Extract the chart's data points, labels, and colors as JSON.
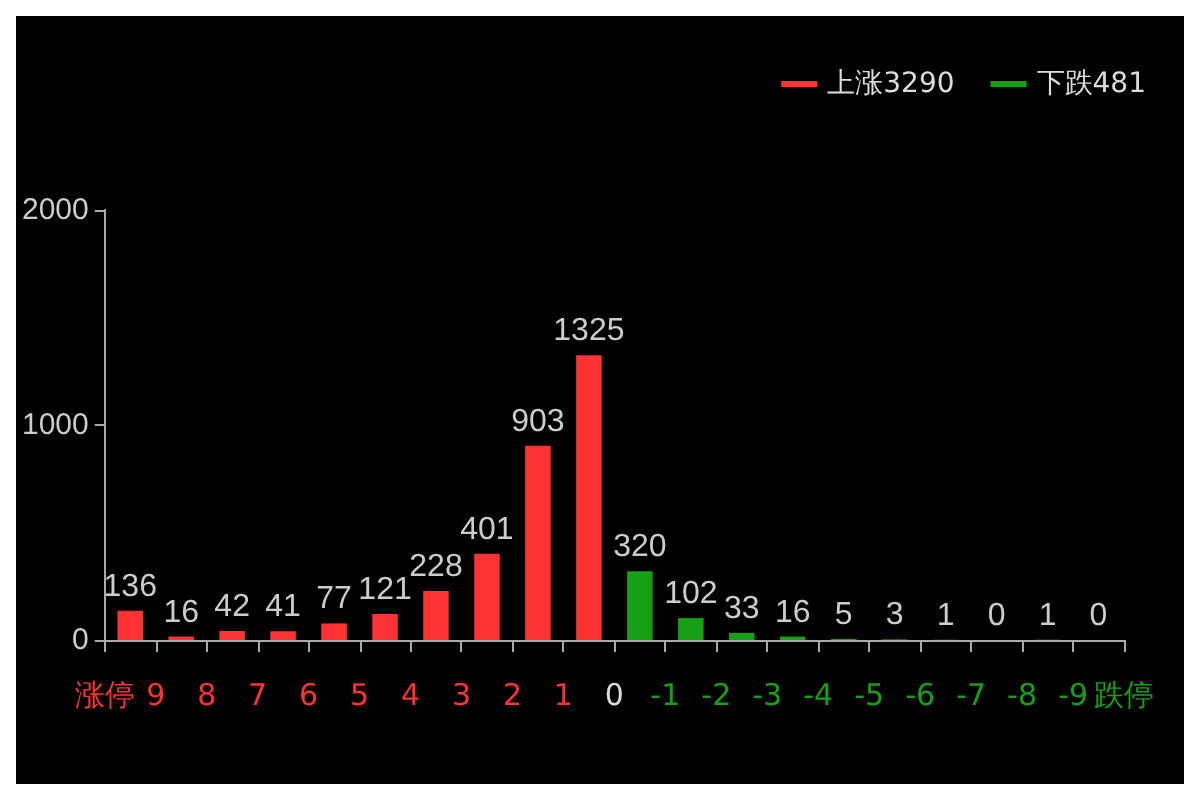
{
  "chart_data": {
    "type": "histogram",
    "bins": [
      10,
      9,
      8,
      7,
      6,
      5,
      4,
      3,
      2,
      1,
      0,
      -1,
      -2,
      -3,
      -4,
      -5,
      -6,
      -7,
      -8,
      -9,
      -10
    ],
    "series": [
      {
        "name": "上涨3290",
        "color": "#ff3333",
        "values": [
          136,
          16,
          42,
          41,
          77,
          121,
          228,
          401,
          903,
          1325,
          null,
          null,
          null,
          null,
          null,
          null,
          null,
          null,
          null,
          null
        ]
      },
      {
        "name": "下跌481",
        "color": "#16a016",
        "values": [
          null,
          null,
          null,
          null,
          null,
          null,
          null,
          null,
          null,
          null,
          320,
          102,
          33,
          16,
          5,
          3,
          1,
          0,
          1,
          0
        ]
      }
    ],
    "xlim": [
      10,
      -10
    ],
    "xticks": [
      {
        "value": 10,
        "label": "涨停"
      },
      9,
      8,
      7,
      6,
      5,
      4,
      3,
      2,
      1,
      0,
      -1,
      -2,
      -3,
      -4,
      -5,
      -6,
      -7,
      -8,
      -9,
      {
        "value": -10,
        "label": "跌停"
      }
    ],
    "ylim": [
      0,
      2000
    ],
    "yticks": [
      0,
      1000,
      2000
    ],
    "data_labels": true,
    "grid": false,
    "legend": "top right"
  }
}
